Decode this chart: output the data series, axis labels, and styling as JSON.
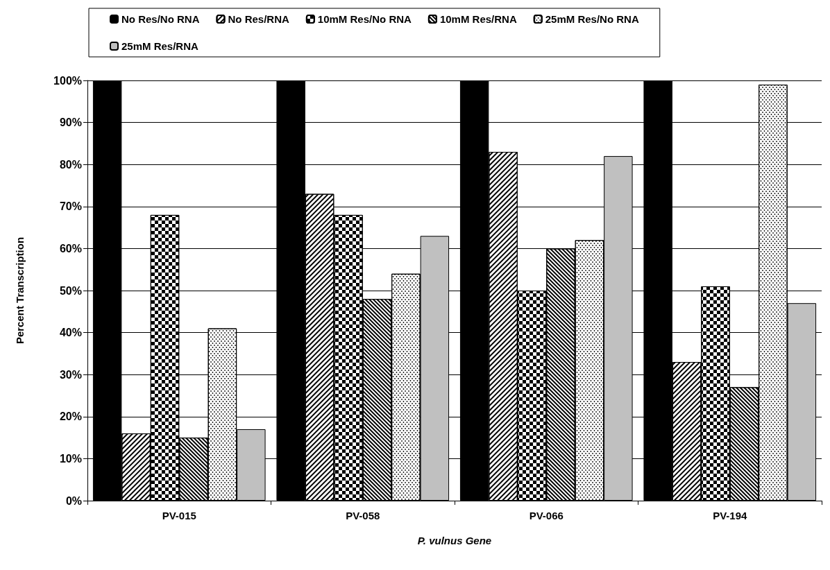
{
  "chart_data": {
    "type": "bar",
    "xlabel": "P. vulnus Gene",
    "ylabel": "Percent Transcription",
    "categories": [
      "PV-015",
      "PV-058",
      "PV-066",
      "PV-194"
    ],
    "series": [
      {
        "name": "No Res/No RNA",
        "color": "#000000",
        "values": [
          100,
          100,
          100,
          100
        ]
      },
      {
        "name": "No Res/RNA",
        "color": "#ffffff",
        "values": [
          16,
          73,
          83,
          33
        ]
      },
      {
        "name": "10mM Res/No RNA",
        "color": "#ffffff",
        "values": [
          68,
          68,
          50,
          51
        ]
      },
      {
        "name": "10mM Res/RNA",
        "color": "#ffffff",
        "values": [
          15,
          48,
          60,
          27
        ]
      },
      {
        "name": "25mM Res/No RNA",
        "color": "#ffffff",
        "values": [
          41,
          54,
          62,
          99
        ]
      },
      {
        "name": "25mM Res/RNA",
        "color": "#c0c0c0",
        "values": [
          17,
          63,
          82,
          47
        ]
      }
    ],
    "ylim": [
      0,
      100
    ],
    "yticks": [
      {
        "value": 0,
        "label": "0%"
      },
      {
        "value": 10,
        "label": "10%"
      },
      {
        "value": 20,
        "label": "20%"
      },
      {
        "value": 30,
        "label": "30%"
      },
      {
        "value": 40,
        "label": "40%"
      },
      {
        "value": 50,
        "label": "50%"
      },
      {
        "value": 60,
        "label": "60%"
      },
      {
        "value": 70,
        "label": "70%"
      },
      {
        "value": 80,
        "label": "80%"
      },
      {
        "value": 90,
        "label": "90%"
      },
      {
        "value": 100,
        "label": "100%"
      }
    ],
    "grid": "y",
    "legend": "top"
  }
}
